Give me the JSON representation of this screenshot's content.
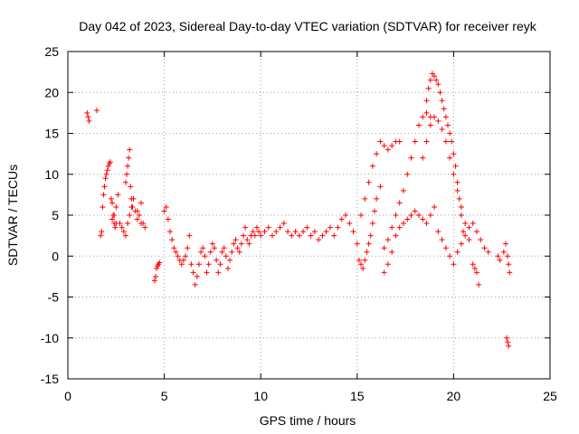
{
  "chart_data": {
    "type": "scatter",
    "title": "Day 042 of 2023, Sidereal Day-to-day VTEC variation (SDTVAR) for receiver reyk",
    "xlabel": "GPS time / hours",
    "ylabel": "SDTVAR / TECUs",
    "xlim": [
      0,
      25
    ],
    "ylim": [
      -15,
      25
    ],
    "xticks": [
      "0",
      "5",
      "10",
      "15",
      "20",
      "25"
    ],
    "yticks": [
      "-15",
      "-10",
      "-5",
      "0",
      "5",
      "10",
      "15",
      "20",
      "25"
    ],
    "grid": true,
    "marker": "+",
    "series": [
      {
        "name": "SDTVAR",
        "color": "#ff0000",
        "x": [
          1.0,
          1.05,
          1.1,
          1.5,
          1.7,
          1.75,
          1.8,
          1.85,
          1.9,
          1.95,
          2.0,
          2.05,
          2.1,
          2.15,
          2.2,
          2.25,
          2.3,
          2.35,
          2.4,
          2.45,
          2.5,
          2.3,
          2.4,
          2.5,
          2.6,
          2.7,
          2.8,
          2.9,
          3.0,
          3.1,
          3.2,
          3.3,
          3.4,
          3.5,
          3.6,
          3.7,
          3.8,
          3.9,
          4.0,
          3.0,
          3.05,
          3.1,
          3.15,
          3.2,
          3.25,
          3.3,
          3.35,
          3.6,
          3.8,
          4.5,
          4.6,
          4.7,
          4.55,
          4.65,
          4.75,
          5.0,
          5.1,
          5.2,
          5.3,
          5.4,
          5.5,
          5.6,
          5.7,
          5.8,
          5.9,
          6.0,
          6.1,
          6.2,
          6.3,
          6.4,
          6.5,
          6.6,
          6.7,
          6.8,
          6.9,
          7.0,
          7.1,
          7.2,
          7.3,
          7.4,
          7.5,
          7.6,
          7.7,
          7.8,
          7.9,
          8.0,
          8.1,
          8.2,
          8.3,
          8.4,
          8.5,
          8.6,
          8.7,
          8.8,
          8.9,
          9.0,
          9.1,
          9.2,
          9.3,
          9.4,
          9.5,
          9.6,
          9.7,
          9.8,
          9.9,
          10.0,
          10.2,
          10.4,
          10.6,
          10.8,
          11.0,
          11.2,
          11.4,
          11.6,
          11.8,
          12.0,
          12.2,
          12.4,
          12.6,
          12.8,
          13.0,
          13.2,
          13.4,
          13.6,
          13.8,
          14.0,
          14.2,
          14.4,
          14.6,
          14.8,
          15.0,
          15.1,
          15.2,
          15.3,
          15.4,
          15.5,
          15.6,
          15.7,
          15.8,
          15.9,
          16.0,
          16.2,
          16.4,
          16.6,
          16.8,
          17.0,
          17.2,
          17.4,
          17.6,
          17.8,
          18.0,
          18.2,
          18.4,
          18.6,
          18.8,
          19.0,
          19.2,
          19.4,
          19.6,
          19.8,
          20.0,
          20.2,
          20.4,
          20.6,
          20.8,
          21.0,
          21.2,
          21.4,
          21.6,
          21.8,
          15.2,
          15.4,
          15.6,
          15.8,
          16.0,
          16.2,
          16.4,
          16.6,
          16.8,
          17.0,
          17.2,
          16.4,
          16.6,
          16.8,
          17.0,
          17.2,
          17.4,
          17.6,
          17.8,
          18.0,
          18.2,
          18.4,
          18.6,
          18.8,
          18.4,
          18.6,
          18.8,
          19.0,
          19.2,
          19.4,
          19.6,
          19.8,
          20.0,
          20.2,
          20.4,
          20.6,
          20.8,
          18.6,
          18.7,
          18.8,
          18.9,
          19.0,
          19.1,
          19.2,
          19.3,
          19.4,
          19.5,
          19.6,
          19.7,
          19.8,
          19.9,
          20.0,
          20.1,
          20.2,
          20.3,
          20.4,
          20.5,
          21.0,
          21.1,
          21.2,
          21.3,
          22.3,
          22.4,
          22.6,
          22.7,
          22.8,
          22.85,
          22.9,
          22.75,
          22.8,
          22.85
        ],
        "y": [
          17.5,
          17.0,
          16.5,
          17.8,
          2.5,
          3.0,
          6.0,
          7.5,
          8.5,
          9.5,
          10.0,
          10.5,
          11.0,
          11.3,
          11.5,
          7.0,
          6.5,
          5.0,
          4.0,
          3.5,
          4.0,
          4.5,
          5.0,
          6.0,
          7.5,
          4.0,
          3.5,
          3.0,
          2.5,
          4.0,
          5.0,
          6.0,
          7.0,
          5.5,
          4.5,
          5.0,
          6.5,
          4.0,
          3.5,
          9.0,
          10.0,
          11.0,
          12.0,
          13.0,
          8.5,
          7.0,
          6.0,
          5.5,
          4.0,
          -3.0,
          -1.5,
          -1.0,
          -2.5,
          -1.2,
          -0.8,
          5.5,
          6.0,
          4.5,
          3.0,
          2.0,
          1.0,
          0.5,
          0.0,
          -0.5,
          -1.0,
          -0.5,
          0.0,
          1.0,
          2.5,
          -1.0,
          -2.0,
          -3.5,
          -2.5,
          -1.0,
          0.5,
          1.0,
          0.0,
          -2.0,
          -1.0,
          0.5,
          1.5,
          1.0,
          -0.5,
          -2.0,
          -1.0,
          0.5,
          1.0,
          0.0,
          -1.5,
          -0.5,
          0.5,
          1.5,
          2.0,
          1.0,
          0.5,
          1.5,
          2.5,
          3.5,
          2.0,
          1.5,
          2.5,
          3.0,
          2.5,
          3.5,
          3.0,
          2.5,
          3.0,
          3.5,
          2.5,
          3.0,
          3.5,
          4.0,
          3.0,
          2.5,
          3.0,
          2.5,
          3.0,
          3.5,
          2.5,
          3.0,
          2.0,
          2.5,
          3.0,
          3.5,
          2.5,
          3.5,
          4.5,
          5.0,
          4.0,
          3.0,
          1.5,
          -0.5,
          -1.0,
          -1.5,
          -0.5,
          0.5,
          1.5,
          2.5,
          4.0,
          5.5,
          7.0,
          8.5,
          -2.0,
          -1.0,
          0.5,
          2.5,
          3.5,
          4.0,
          4.5,
          5.0,
          5.5,
          5.0,
          4.5,
          4.0,
          5.0,
          6.0,
          3.0,
          2.0,
          1.0,
          0.0,
          -1.0,
          0.5,
          1.5,
          2.5,
          3.5,
          4.0,
          3.0,
          2.0,
          1.0,
          0.5,
          5.0,
          7.0,
          9.0,
          11.0,
          12.5,
          14.0,
          13.5,
          13.0,
          13.5,
          14.0,
          14.0,
          1.0,
          2.0,
          3.5,
          5.0,
          6.5,
          8.0,
          10.0,
          12.0,
          14.0,
          16.0,
          17.0,
          17.5,
          17.0,
          12.0,
          14.0,
          16.0,
          17.0,
          16.5,
          15.5,
          14.0,
          12.0,
          10.0,
          8.0,
          6.0,
          4.0,
          2.0,
          19.0,
          20.5,
          21.5,
          22.3,
          22.0,
          21.5,
          21.0,
          20.0,
          19.0,
          18.0,
          17.0,
          16.0,
          15.0,
          14.0,
          12.5,
          11.0,
          9.0,
          7.0,
          5.0,
          3.0,
          -1.0,
          -1.5,
          -2.0,
          -3.5,
          0.0,
          -0.5,
          0.5,
          1.5,
          0.0,
          -1.0,
          -2.0,
          -10.0,
          -10.5,
          -11.0
        ]
      }
    ]
  }
}
